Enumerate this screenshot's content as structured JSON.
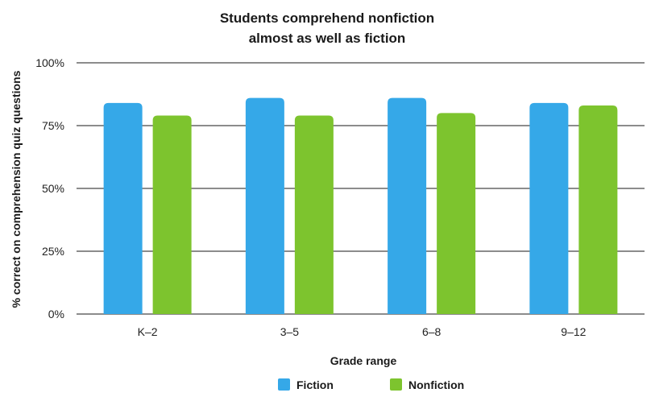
{
  "chart_data": {
    "type": "bar",
    "title_lines": [
      "Students comprehend nonfiction",
      "almost as well as fiction"
    ],
    "xlabel": "Grade range",
    "ylabel": "% correct on comprehension  quiz questions",
    "categories": [
      "K–2",
      "3–5",
      "6–8",
      "9–12"
    ],
    "series": [
      {
        "name": "Fiction",
        "color": "#35A8E8",
        "values": [
          84,
          86,
          86,
          84
        ]
      },
      {
        "name": "Nonfiction",
        "color": "#7DC42E",
        "values": [
          79,
          79,
          80,
          83
        ]
      }
    ],
    "ylim": [
      0,
      100
    ],
    "yticks": [
      0,
      25,
      50,
      75,
      100
    ],
    "ytick_labels": [
      "0%",
      "25%",
      "50%",
      "75%",
      "100%"
    ],
    "grid": true,
    "legend_position": "bottom-center"
  }
}
